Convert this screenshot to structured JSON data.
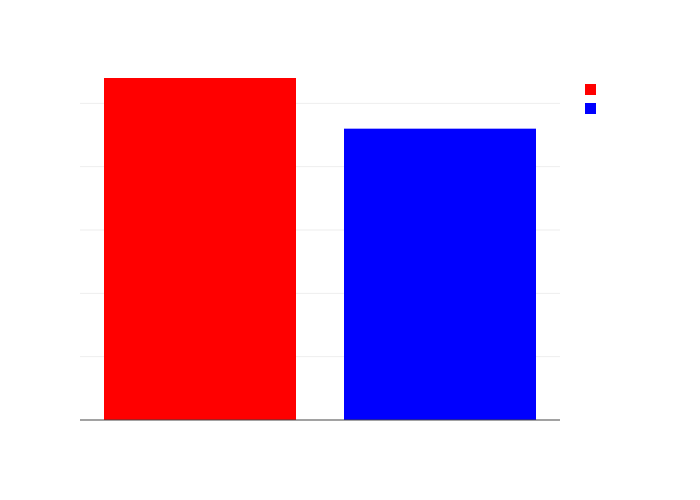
{
  "chart_data": {
    "type": "bar",
    "categories": [
      null,
      null
    ],
    "values": [
      5.4,
      4.6
    ],
    "colors": [
      "#ff0000",
      "#0000ff"
    ],
    "ylim": [
      0,
      5.4
    ],
    "yticks": [
      0,
      1,
      2,
      3,
      4,
      5
    ],
    "grid": true,
    "legend": "top-right"
  }
}
